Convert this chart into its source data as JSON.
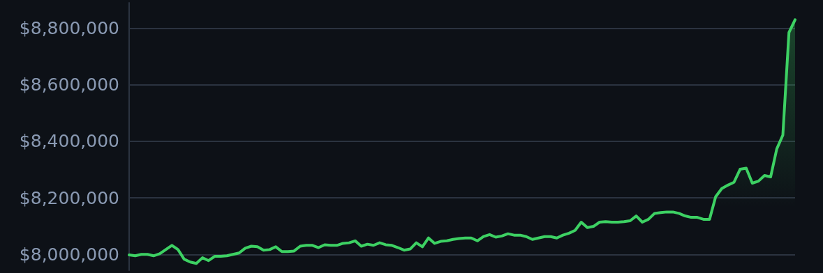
{
  "chart_data": {
    "type": "area",
    "categories": [
      null,
      null,
      null,
      null,
      null,
      null,
      null,
      null,
      null,
      null,
      null,
      null,
      null,
      null,
      null,
      null,
      null,
      null,
      null,
      null,
      null,
      null,
      null,
      null,
      null,
      null,
      null,
      null,
      null,
      null,
      null,
      null,
      null,
      null,
      null,
      null,
      null,
      null,
      null,
      null,
      null,
      null,
      null,
      null,
      null,
      null,
      null,
      null,
      null,
      null,
      null,
      null,
      null,
      null,
      null,
      null,
      null,
      null,
      null,
      null,
      null,
      null,
      null,
      null,
      null,
      null,
      null,
      null,
      null,
      null,
      null,
      null,
      null,
      null,
      null,
      null,
      null,
      null,
      null,
      null,
      null,
      null,
      null,
      null,
      null,
      null,
      null,
      null,
      null,
      null,
      null,
      null,
      null,
      null,
      null,
      null,
      null,
      null,
      null,
      null,
      null,
      null,
      null,
      null,
      null,
      null,
      null,
      null,
      null,
      null
    ],
    "series": [
      {
        "color": "#3dd163",
        "values": [
          7998000,
          7995000,
          8000000,
          8000000,
          7995000,
          8002000,
          8017000,
          8032000,
          8017000,
          7983000,
          7973000,
          7968000,
          7988000,
          7978000,
          7993000,
          7993000,
          7995000,
          8000000,
          8005000,
          8022000,
          8029000,
          8027000,
          8015000,
          8017000,
          8027000,
          8010000,
          8010000,
          8012000,
          8029000,
          8032000,
          8032000,
          8024000,
          8034000,
          8032000,
          8032000,
          8039000,
          8041000,
          8048000,
          8029000,
          8036000,
          8032000,
          8041000,
          8034000,
          8032000,
          8024000,
          8015000,
          8019000,
          8041000,
          8027000,
          8058000,
          8039000,
          8046000,
          8048000,
          8053000,
          8056000,
          8058000,
          8058000,
          8048000,
          8063000,
          8070000,
          8061000,
          8065000,
          8073000,
          8068000,
          8068000,
          8063000,
          8053000,
          8058000,
          8063000,
          8063000,
          8058000,
          8068000,
          8075000,
          8085000,
          8114000,
          8095000,
          8099000,
          8114000,
          8116000,
          8114000,
          8114000,
          8116000,
          8119000,
          8136000,
          8114000,
          8124000,
          8145000,
          8148000,
          8150000,
          8150000,
          8145000,
          8136000,
          8131000,
          8131000,
          8124000,
          8124000,
          8204000,
          8233000,
          8245000,
          8255000,
          8301000,
          8305000,
          8252000,
          8259000,
          8279000,
          8274000,
          8373000,
          8422000,
          8785000,
          8830000
        ]
      }
    ],
    "ylim": [
      7944000,
      8890000
    ],
    "yticks": [
      {
        "value": 8000000,
        "label": "$8,000,000"
      },
      {
        "value": 8200000,
        "label": "$8,200,000"
      },
      {
        "value": 8400000,
        "label": "$8,400,000"
      },
      {
        "value": 8600000,
        "label": "$8,600,000"
      },
      {
        "value": 8800000,
        "label": "$8,800,000"
      }
    ],
    "grid": "y",
    "tick_labels": "y",
    "line_style": "solid"
  }
}
